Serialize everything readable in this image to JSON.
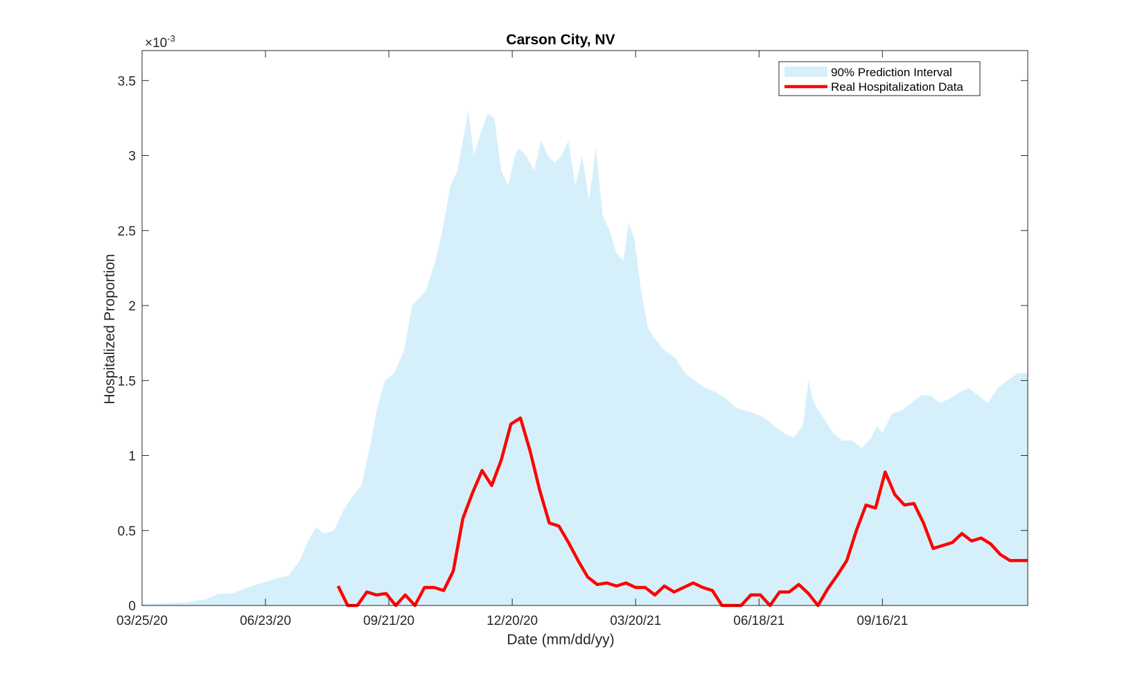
{
  "chart_data": {
    "type": "area",
    "title": "Carson City, NV",
    "xlabel": "Date (mm/dd/yy)",
    "ylabel": "Hospitalized Proportion",
    "y_exponent_label": "×10",
    "y_exponent_power": "-3",
    "ylim": [
      0,
      3.7
    ],
    "yticks": [
      0,
      0.5,
      1,
      1.5,
      2,
      2.5,
      3,
      3.5
    ],
    "ytick_labels": [
      "0",
      "0.5",
      "1",
      "1.5",
      "2",
      "2.5",
      "3",
      "3.5"
    ],
    "xlim": [
      "2020-03-25",
      "2021-12-31"
    ],
    "xticks": [
      "2020-03-25",
      "2020-06-23",
      "2020-09-21",
      "2020-12-20",
      "2021-03-20",
      "2021-06-18",
      "2021-09-16"
    ],
    "xtick_labels": [
      "03/25/20",
      "06/23/20",
      "09/21/20",
      "12/20/20",
      "03/20/21",
      "06/18/21",
      "09/16/21"
    ],
    "grid": false,
    "legend_position": "top-right",
    "colors": {
      "interval_fill": "#d6f0fb",
      "real_line": "#ff0000",
      "axis": "#262626"
    },
    "series": [
      {
        "name": "90% Prediction Interval",
        "kind": "area",
        "x": [
          "2020-03-25",
          "2020-04-10",
          "2020-04-25",
          "2020-05-10",
          "2020-05-20",
          "2020-05-30",
          "2020-06-10",
          "2020-06-20",
          "2020-07-01",
          "2020-07-10",
          "2020-07-18",
          "2020-07-25",
          "2020-07-30",
          "2020-08-05",
          "2020-08-12",
          "2020-08-18",
          "2020-08-25",
          "2020-09-01",
          "2020-09-07",
          "2020-09-12",
          "2020-09-18",
          "2020-09-25",
          "2020-10-02",
          "2020-10-08",
          "2020-10-13",
          "2020-10-18",
          "2020-10-25",
          "2020-10-30",
          "2020-11-05",
          "2020-11-10",
          "2020-11-14",
          "2020-11-18",
          "2020-11-22",
          "2020-11-27",
          "2020-12-02",
          "2020-12-07",
          "2020-12-12",
          "2020-12-17",
          "2020-12-22",
          "2020-12-25",
          "2020-12-30",
          "2021-01-05",
          "2021-01-10",
          "2021-01-15",
          "2021-01-20",
          "2021-01-25",
          "2021-01-30",
          "2021-02-04",
          "2021-02-09",
          "2021-02-14",
          "2021-02-19",
          "2021-02-24",
          "2021-03-01",
          "2021-03-06",
          "2021-03-11",
          "2021-03-15",
          "2021-03-19",
          "2021-03-24",
          "2021-03-29",
          "2021-04-03",
          "2021-04-10",
          "2021-04-18",
          "2021-04-25",
          "2021-05-02",
          "2021-05-10",
          "2021-05-18",
          "2021-05-25",
          "2021-06-01",
          "2021-06-08",
          "2021-06-15",
          "2021-06-22",
          "2021-06-29",
          "2021-07-06",
          "2021-07-13",
          "2021-07-20",
          "2021-07-24",
          "2021-07-28",
          "2021-08-04",
          "2021-08-11",
          "2021-08-18",
          "2021-08-25",
          "2021-09-01",
          "2021-09-08",
          "2021-09-12",
          "2021-09-16",
          "2021-09-23",
          "2021-09-30",
          "2021-10-07",
          "2021-10-14",
          "2021-10-21",
          "2021-10-28",
          "2021-11-04",
          "2021-11-11",
          "2021-11-18",
          "2021-11-25",
          "2021-12-02",
          "2021-12-09",
          "2021-12-16",
          "2021-12-24",
          "2021-12-31"
        ],
        "values": [
          0.01,
          0.015,
          0.02,
          0.04,
          0.08,
          0.08,
          0.12,
          0.15,
          0.18,
          0.2,
          0.3,
          0.45,
          0.52,
          0.48,
          0.5,
          0.62,
          0.72,
          0.8,
          1.05,
          1.3,
          1.5,
          1.55,
          1.7,
          2.0,
          2.05,
          2.1,
          2.3,
          2.5,
          2.8,
          2.9,
          3.1,
          3.3,
          3.0,
          3.15,
          3.28,
          3.25,
          2.9,
          2.8,
          3.0,
          3.05,
          3.0,
          2.9,
          3.1,
          3.0,
          2.95,
          3.0,
          3.1,
          2.8,
          3.0,
          2.7,
          3.05,
          2.6,
          2.5,
          2.35,
          2.3,
          2.55,
          2.45,
          2.1,
          1.85,
          1.78,
          1.7,
          1.65,
          1.55,
          1.5,
          1.45,
          1.42,
          1.38,
          1.32,
          1.3,
          1.28,
          1.25,
          1.2,
          1.15,
          1.12,
          1.2,
          1.5,
          1.35,
          1.25,
          1.15,
          1.1,
          1.1,
          1.05,
          1.12,
          1.2,
          1.15,
          1.28,
          1.3,
          1.35,
          1.4,
          1.4,
          1.35,
          1.38,
          1.42,
          1.45,
          1.4,
          1.35,
          1.45,
          1.5,
          1.55,
          1.55
        ]
      },
      {
        "name": "Real Hospitalization Data",
        "kind": "line",
        "x": [
          "2020-08-15",
          "2020-08-22",
          "2020-08-29",
          "2020-09-05",
          "2020-09-12",
          "2020-09-19",
          "2020-09-26",
          "2020-10-03",
          "2020-10-10",
          "2020-10-17",
          "2020-10-24",
          "2020-10-31",
          "2020-11-07",
          "2020-11-14",
          "2020-11-21",
          "2020-11-28",
          "2020-12-05",
          "2020-12-12",
          "2020-12-19",
          "2020-12-26",
          "2021-01-02",
          "2021-01-09",
          "2021-01-16",
          "2021-01-23",
          "2021-01-30",
          "2021-02-06",
          "2021-02-13",
          "2021-02-20",
          "2021-02-27",
          "2021-03-06",
          "2021-03-13",
          "2021-03-20",
          "2021-03-27",
          "2021-04-03",
          "2021-04-10",
          "2021-04-17",
          "2021-04-24",
          "2021-05-01",
          "2021-05-08",
          "2021-05-15",
          "2021-05-22",
          "2021-05-29",
          "2021-06-05",
          "2021-06-12",
          "2021-06-19",
          "2021-06-26",
          "2021-07-03",
          "2021-07-10",
          "2021-07-17",
          "2021-07-24",
          "2021-07-31",
          "2021-08-07",
          "2021-08-14",
          "2021-08-21",
          "2021-08-28",
          "2021-09-04",
          "2021-09-11",
          "2021-09-18",
          "2021-09-25",
          "2021-10-02",
          "2021-10-09",
          "2021-10-16",
          "2021-10-23",
          "2021-10-30",
          "2021-11-06",
          "2021-11-13",
          "2021-11-20",
          "2021-11-27",
          "2021-12-04",
          "2021-12-11",
          "2021-12-18",
          "2021-12-25",
          "2021-12-31"
        ],
        "values": [
          0.13,
          0.0,
          0.0,
          0.09,
          0.07,
          0.08,
          0.0,
          0.07,
          0.0,
          0.12,
          0.12,
          0.1,
          0.23,
          0.58,
          0.75,
          0.9,
          0.8,
          0.97,
          1.21,
          1.25,
          1.03,
          0.77,
          0.55,
          0.53,
          0.42,
          0.3,
          0.19,
          0.14,
          0.15,
          0.13,
          0.15,
          0.12,
          0.12,
          0.07,
          0.13,
          0.09,
          0.12,
          0.15,
          0.12,
          0.1,
          0.0,
          0.0,
          0.0,
          0.07,
          0.07,
          0.0,
          0.09,
          0.09,
          0.14,
          0.08,
          0.0,
          0.11,
          0.2,
          0.3,
          0.5,
          0.67,
          0.65,
          0.89,
          0.74,
          0.67,
          0.68,
          0.55,
          0.38,
          0.4,
          0.42,
          0.48,
          0.43,
          0.45,
          0.41,
          0.34,
          0.3,
          0.3,
          0.3
        ]
      }
    ]
  }
}
